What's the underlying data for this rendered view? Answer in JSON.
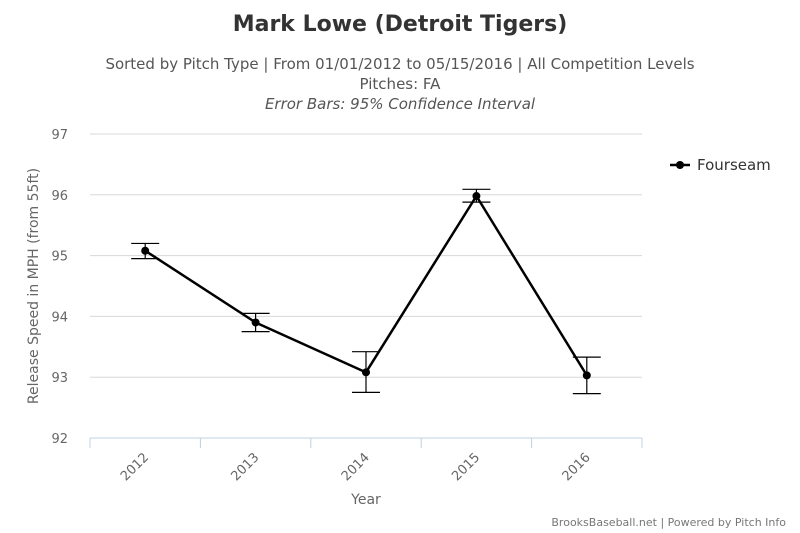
{
  "chart_data": {
    "type": "line",
    "title": "Mark Lowe (Detroit Tigers)",
    "subtitle_lines": [
      "Sorted by Pitch Type | From 01/01/2012 to 05/15/2016 | All Competition Levels",
      "Pitches: FA",
      "Error Bars: 95% Confidence Interval"
    ],
    "categories": [
      "2012",
      "2013",
      "2014",
      "2015",
      "2016"
    ],
    "series": [
      {
        "name": "Fourseam",
        "color": "#000000",
        "values": [
          95.08,
          93.9,
          93.08,
          95.98,
          93.03
        ],
        "error_low": [
          94.95,
          93.75,
          92.75,
          95.88,
          92.73
        ],
        "error_high": [
          95.2,
          94.05,
          93.42,
          96.09,
          93.33
        ]
      }
    ],
    "ylim": [
      92,
      97
    ],
    "yticks": [
      92,
      93,
      94,
      95,
      96,
      97
    ],
    "ylabel": "Release Speed in MPH (from 55ft)",
    "xlabel": "Year",
    "grid": true,
    "legend_position": "right"
  },
  "credit": "BrooksBaseball.net | Powered by Pitch Info"
}
